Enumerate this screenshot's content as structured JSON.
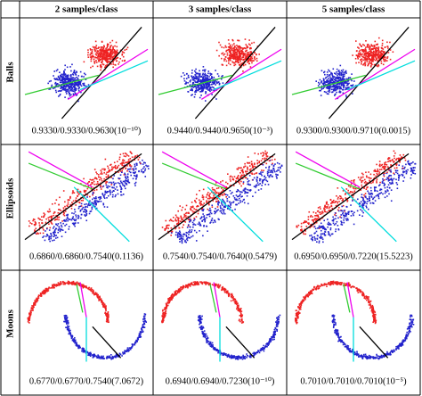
{
  "header": {
    "columns": [
      "2 samples/class",
      "3 samples/class",
      "5 samples/class"
    ]
  },
  "rows": [
    {
      "label": "Balls",
      "captions": [
        "0.9330/0.9330/0.9630(10⁻¹⁰)",
        "0.9440/0.9440/0.9650(10⁻³)",
        "0.9300/0.9300/0.9710(0.0015)"
      ]
    },
    {
      "label": "Ellipsoids",
      "captions": [
        "0.6860/0.6860/0.7540(0.1136)",
        "0.7540/0.7540/0.7640(0.5479)",
        "0.6950/0.6950/0.7220(15.5223)"
      ]
    },
    {
      "label": "Moons",
      "captions": [
        "0.6770/0.6770/0.7540(7.0672)",
        "0.6940/0.6940/0.7230(10⁻¹⁰)",
        "0.7010/0.7010/0.7010(10⁻⁵)"
      ]
    }
  ]
}
